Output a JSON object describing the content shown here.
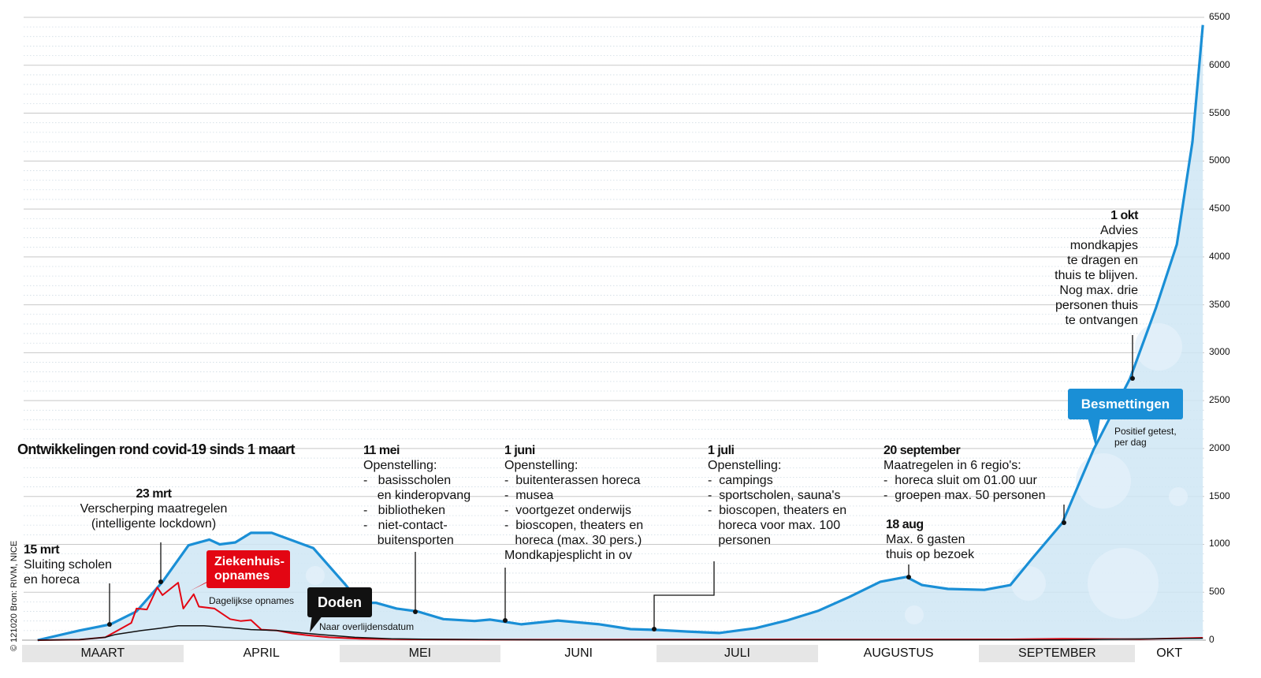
{
  "chart_data": {
    "type": "area",
    "title": "Ontwikkelingen rond covid-19  sinds 1 maart",
    "x_unit": "days since 1 maart",
    "categories": [
      "MAART",
      "APRIL",
      "MEI",
      "JUNI",
      "JULI",
      "AUGUSTUS",
      "SEPTEMBER",
      "OKT"
    ],
    "month_start_days": [
      0,
      31,
      61,
      92,
      122,
      153,
      184,
      214
    ],
    "ylim": [
      0,
      6500
    ],
    "yticks": [
      0,
      500,
      1000,
      1500,
      2000,
      2500,
      3000,
      3500,
      4000,
      4500,
      5000,
      5500,
      6000,
      6500
    ],
    "grid": true,
    "series": [
      {
        "name": "Besmettingen",
        "subtitle": "Positief getest, per dag",
        "color": "#1a8fd6",
        "points": [
          [
            3,
            0
          ],
          [
            11,
            100
          ],
          [
            17,
            165
          ],
          [
            22,
            300
          ],
          [
            27,
            610
          ],
          [
            32,
            990
          ],
          [
            36,
            1050
          ],
          [
            38,
            1000
          ],
          [
            41,
            1020
          ],
          [
            44,
            1120
          ],
          [
            48,
            1120
          ],
          [
            53,
            1020
          ],
          [
            56,
            960
          ],
          [
            62,
            590
          ],
          [
            65,
            390
          ],
          [
            68,
            390
          ],
          [
            72,
            330
          ],
          [
            76,
            300
          ],
          [
            81,
            220
          ],
          [
            87,
            200
          ],
          [
            90,
            215
          ],
          [
            96,
            165
          ],
          [
            103,
            205
          ],
          [
            111,
            165
          ],
          [
            117,
            115
          ],
          [
            122,
            107
          ],
          [
            128,
            90
          ],
          [
            134,
            75
          ],
          [
            141,
            125
          ],
          [
            147,
            205
          ],
          [
            153,
            305
          ],
          [
            159,
            450
          ],
          [
            165,
            610
          ],
          [
            170,
            660
          ],
          [
            173,
            575
          ],
          [
            178,
            535
          ],
          [
            185,
            525
          ],
          [
            190,
            575
          ],
          [
            194,
            840
          ],
          [
            200,
            1225
          ],
          [
            206,
            1990
          ],
          [
            213,
            2730
          ],
          [
            218,
            3470
          ],
          [
            222,
            4130
          ],
          [
            225,
            5200
          ],
          [
            227,
            6420
          ]
        ]
      },
      {
        "name": "Ziekenhuis-opnames",
        "subtitle": "Dagelijkse opnames",
        "color": "#e30613",
        "points": [
          [
            3,
            0
          ],
          [
            11,
            5
          ],
          [
            16,
            30
          ],
          [
            18,
            90
          ],
          [
            21,
            180
          ],
          [
            22,
            330
          ],
          [
            24,
            320
          ],
          [
            26,
            550
          ],
          [
            27,
            470
          ],
          [
            30,
            600
          ],
          [
            31,
            330
          ],
          [
            33,
            480
          ],
          [
            34,
            350
          ],
          [
            37,
            330
          ],
          [
            40,
            220
          ],
          [
            42,
            200
          ],
          [
            44,
            210
          ],
          [
            46,
            110
          ],
          [
            49,
            100
          ],
          [
            52,
            70
          ],
          [
            55,
            50
          ],
          [
            59,
            30
          ],
          [
            65,
            15
          ],
          [
            75,
            8
          ],
          [
            90,
            5
          ],
          [
            190,
            8
          ],
          [
            200,
            15
          ],
          [
            215,
            10
          ],
          [
            227,
            25
          ]
        ]
      },
      {
        "name": "Doden",
        "subtitle": "Naar overlijdensdatum",
        "color": "#111111",
        "points": [
          [
            3,
            0
          ],
          [
            11,
            5
          ],
          [
            16,
            30
          ],
          [
            18,
            60
          ],
          [
            23,
            100
          ],
          [
            26,
            120
          ],
          [
            30,
            150
          ],
          [
            35,
            150
          ],
          [
            40,
            130
          ],
          [
            44,
            110
          ],
          [
            49,
            100
          ],
          [
            53,
            80
          ],
          [
            58,
            55
          ],
          [
            64,
            30
          ],
          [
            71,
            15
          ],
          [
            80,
            8
          ],
          [
            100,
            3
          ],
          [
            200,
            3
          ],
          [
            227,
            20
          ]
        ]
      }
    ]
  },
  "labels": {
    "ziekenhuis": "Ziekenhuis-\nopnames",
    "ziekenhuis_sub": "Dagelijkse opnames",
    "doden": "Doden",
    "doden_sub": "Naar overlijdensdatum",
    "besmettingen": "Besmettingen",
    "besmettingen_sub": "Positief getest,\nper dag"
  },
  "annotations": [
    {
      "date": "15 mrt",
      "text": "Sluiting scholen\nen horeca"
    },
    {
      "date": "23 mrt",
      "text": "Verscherping maatregelen\n(intelligente lockdown)"
    },
    {
      "date": "11 mei",
      "text": "Openstelling:\n-   basisscholen\n    en kinderopvang\n-   bibliotheken\n-   niet-contact-\n    buitensporten"
    },
    {
      "date": "1 juni",
      "text": "Openstelling:\n-  buitenterassen horeca\n-  musea\n-  voortgezet onderwijs\n-  bioscopen, theaters en\n   horeca (max. 30 pers.)\nMondkapjesplicht in ov"
    },
    {
      "date": "1 juli",
      "text": "Openstelling:\n-  campings\n-  sportscholen, sauna's\n-  bioscopen, theaters en\n   horeca voor max. 100\n   personen"
    },
    {
      "date": "20 september",
      "text": "Maatregelen in 6 regio's:\n-  horeca sluit om 01.00 uur\n-  groepen max. 50 personen"
    },
    {
      "date": "18 aug",
      "text": "Max. 6 gasten\nthuis op bezoek"
    },
    {
      "date": "1 okt",
      "text": "Advies\nmondkapjes\nte dragen en\nthuis te blijven.\nNog max. drie\npersonen thuis\nte ontvangen"
    }
  ],
  "credit": "© 121020 Bron: RIVM, NICE"
}
